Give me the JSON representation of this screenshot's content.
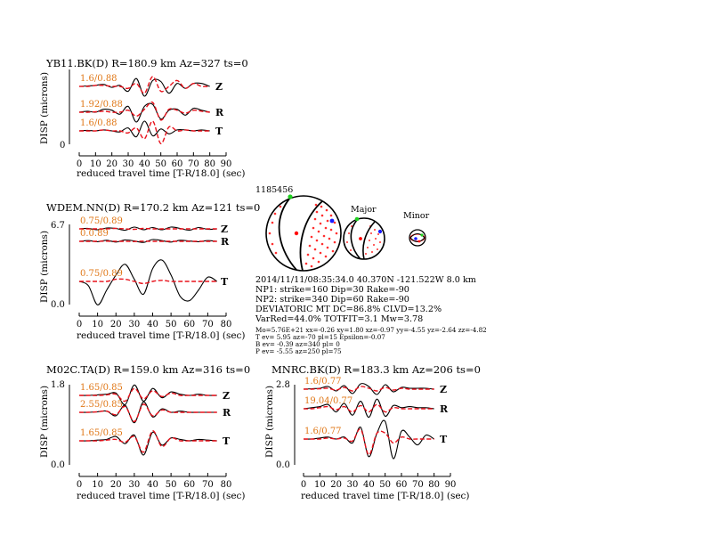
{
  "event": {
    "id": "1185456",
    "origin": "2014/11/11/08:35:34.0 40.370N -121.522W 8.0 km",
    "np1": "NP1: strike=160 Dip=30 Rake=-90",
    "np2": "NP2: strike=340 Dip=60 Rake=-90",
    "deviatoric": "DEVIATORIC MT DC=86.8% CLVD=13.2%",
    "varred": "VarRed=44.0% TOTFIT=3.1 Mw=3.78",
    "mt_line": "Mo=5.76E+21 xx=-0.26 xy=1.80 xz=-0.97 yy=-4.55 yz=-2.64 zz=-4.82",
    "t_line": "T ev=  5.95 az=-70 pl=15 Epsilon=-0.07",
    "b_line": "B ev= -0.39 az=340 pl= 0",
    "p_line": "P ev= -5.55 az=250 pl=75",
    "major_label": "Major",
    "minor_label": "Minor"
  },
  "colors": {
    "data": "#000000",
    "synthetic": "#e8101a",
    "amplitude_text": "#e07818",
    "compression_dot": "#ff3030",
    "t_axis": "#ff0000",
    "p_axis": "#1a1aff",
    "b_axis": "#20d020"
  },
  "chart_data": [
    {
      "type": "line",
      "title": "YB11.BK(D) R=180.9 km Az=327 ts=0",
      "xlabel": "reduced travel time [T-R/18.0] (sec)",
      "ylabel": "DISP (microns)",
      "xlim": [
        0,
        90
      ],
      "xticks": [
        0,
        10,
        20,
        30,
        40,
        50,
        60,
        70,
        80,
        90
      ],
      "yticks": [
        "0"
      ],
      "traces": [
        {
          "component": "Z",
          "amp_label": "1.6/0.88",
          "data": [
            0,
            0.05,
            0.1,
            0.2,
            -0.1,
            0.1,
            -0.5,
            0.8,
            -1.0,
            0.6,
            0.5,
            -0.7,
            0.3,
            -0.2,
            0.3,
            0.3,
            0
          ],
          "synthetic": [
            0,
            0,
            0.1,
            0.1,
            0,
            0,
            -0.2,
            0.3,
            -0.7,
            1.0,
            -0.5,
            0,
            0.6,
            -0.2,
            0.3,
            0,
            0
          ]
        },
        {
          "component": "R",
          "amp_label": "1.92/0.88",
          "data": [
            0,
            0.1,
            0,
            0.3,
            0.2,
            -0.2,
            0.6,
            -1.0,
            0.6,
            0.8,
            -0.7,
            0.2,
            0.3,
            -0.3,
            0.4,
            0.2,
            0
          ],
          "synthetic": [
            0,
            0,
            0.05,
            0.1,
            0,
            0,
            0.2,
            -0.4,
            0.3,
            1.0,
            -0.8,
            0.3,
            0.2,
            -0.1,
            0.2,
            0.1,
            0
          ]
        },
        {
          "component": "T",
          "amp_label": "1.6/0.88",
          "data": [
            0,
            0.05,
            0,
            0.1,
            0,
            -0.1,
            0.3,
            -0.6,
            1.0,
            -0.5,
            0.2,
            -0.3,
            0.1,
            0.1,
            0,
            0.1,
            0
          ],
          "synthetic": [
            0,
            0,
            0,
            0.1,
            0,
            0,
            -0.2,
            0.3,
            -0.8,
            1.0,
            -1.3,
            0.4,
            0,
            0.1,
            0,
            0,
            0
          ]
        }
      ]
    },
    {
      "type": "line",
      "title": "WDEM.NN(D) R=170.2 km Az=121 ts=0",
      "xlabel": "reduced travel time [T-R/18.0] (sec)",
      "ylabel": "DISP (microns)",
      "xlim": [
        0,
        80
      ],
      "xticks": [
        0,
        10,
        20,
        30,
        40,
        50,
        60,
        70,
        80
      ],
      "yticks": [
        "6.7",
        "0.0"
      ],
      "traces": [
        {
          "component": "Z",
          "amp_label": "0.75/0.89",
          "data": [
            0,
            0.1,
            -0.2,
            0.2,
            0.1,
            -0.3,
            0.4,
            -0.2,
            0.3,
            -0.2,
            0.4,
            0.1,
            -0.3,
            0.3,
            -0.1,
            0
          ],
          "synthetic": [
            0,
            0,
            0,
            0,
            0.1,
            0,
            -0.1,
            0.1,
            0,
            0,
            0,
            0,
            0,
            0,
            0,
            0
          ]
        },
        {
          "component": "R",
          "amp_label": "0.0.89",
          "data": [
            0,
            0.2,
            -0.1,
            0.3,
            -0.2,
            0.4,
            0.1,
            -0.3,
            0.5,
            0.2,
            -0.2,
            0.3,
            0.1,
            -0.1,
            0.2,
            0
          ],
          "synthetic": [
            0,
            0,
            0,
            0.05,
            0,
            0,
            -0.05,
            0.05,
            0,
            0,
            0,
            0,
            0,
            0,
            0,
            0
          ]
        },
        {
          "component": "T",
          "amp_label": "0.75/0.89",
          "data": [
            0,
            -0.2,
            -1.1,
            -0.4,
            0.3,
            0.8,
            0.1,
            -0.6,
            0.6,
            1.0,
            0.3,
            -0.7,
            -0.9,
            -0.4,
            0.2,
            0
          ],
          "synthetic": [
            0,
            0,
            0,
            0,
            0.1,
            0.1,
            0,
            -0.1,
            0,
            0.05,
            0,
            0,
            0,
            0,
            0,
            0
          ]
        }
      ]
    },
    {
      "type": "line",
      "title": "M02C.TA(D) R=159.0 km Az=316 ts=0",
      "xlabel": "reduced travel time [T-R/18.0] (sec)",
      "ylabel": "DISP (microns)",
      "xlim": [
        0,
        80
      ],
      "xticks": [
        0,
        10,
        20,
        30,
        40,
        50,
        60,
        70,
        80
      ],
      "yticks": [
        "1.8",
        "0.0"
      ],
      "traces": [
        {
          "component": "Z",
          "amp_label": "1.65/0.85",
          "data": [
            0,
            0,
            0.05,
            0.1,
            0.2,
            -0.8,
            0.9,
            -0.5,
            0.6,
            -0.2,
            0.3,
            0.1,
            0,
            0.1,
            0,
            0
          ],
          "synthetic": [
            0,
            0,
            0,
            0.05,
            0.1,
            -0.5,
            0.6,
            -0.3,
            0.4,
            -0.1,
            0.2,
            0,
            0,
            0,
            0,
            0
          ]
        },
        {
          "component": "R",
          "amp_label": "2.55/0.85",
          "data": [
            0,
            0,
            0.05,
            0.1,
            -0.3,
            0.6,
            -0.9,
            0.9,
            -0.4,
            0.3,
            0,
            0.1,
            0,
            0,
            0,
            0
          ],
          "synthetic": [
            0,
            0,
            0.05,
            0.1,
            -0.2,
            0.5,
            -0.8,
            0.7,
            -0.3,
            0.2,
            0,
            0,
            0,
            0,
            0,
            0
          ]
        },
        {
          "component": "T",
          "amp_label": "1.65/0.85",
          "data": [
            0,
            0,
            0.05,
            0.1,
            0.3,
            -0.2,
            0.4,
            -1.0,
            0.6,
            -0.3,
            0.2,
            0.1,
            0,
            0.1,
            0.05,
            0
          ],
          "synthetic": [
            0,
            0,
            0,
            0.05,
            0.1,
            -0.1,
            0.3,
            -0.8,
            0.7,
            -0.4,
            0.2,
            0,
            0,
            0,
            0,
            0
          ]
        }
      ]
    },
    {
      "type": "line",
      "title": "MNRC.BK(D) R=183.3 km Az=206 ts=0",
      "xlabel": "reduced travel time [T-R/18.0] (sec)",
      "ylabel": "DISP (microns)",
      "xlim": [
        0,
        90
      ],
      "xticks": [
        0,
        10,
        20,
        30,
        40,
        50,
        60,
        70,
        80,
        90
      ],
      "yticks": [
        "2.8",
        "0.0"
      ],
      "traces": [
        {
          "component": "Z",
          "amp_label": "1.6/0.77",
          "data": [
            0,
            0.05,
            0.1,
            0.3,
            -0.2,
            0.4,
            -0.5,
            0.6,
            0.3,
            -0.6,
            0.5,
            -0.3,
            0.2,
            0.1,
            0.1,
            0.1,
            0
          ],
          "synthetic": [
            0,
            0,
            0.05,
            0.1,
            -0.1,
            0.2,
            -0.2,
            0.3,
            0.1,
            -0.2,
            0.2,
            -0.1,
            0.1,
            0,
            0,
            0,
            0
          ]
        },
        {
          "component": "R",
          "amp_label": "19.04/0.77",
          "data": [
            0,
            0.1,
            0.2,
            0.4,
            -0.3,
            0.5,
            -0.6,
            0.7,
            -0.8,
            0.9,
            -0.7,
            0.3,
            0.1,
            0.2,
            0.1,
            0.1,
            0
          ],
          "synthetic": [
            0,
            0,
            0.1,
            0.2,
            -0.1,
            0.2,
            -0.3,
            0.3,
            -0.3,
            0.4,
            -0.3,
            0.1,
            0,
            0,
            0,
            0,
            0
          ]
        },
        {
          "component": "T",
          "amp_label": "1.6/0.77",
          "data": [
            0,
            0,
            0.05,
            0.1,
            0,
            0.1,
            -0.2,
            0.6,
            -0.9,
            0.3,
            0.9,
            -1.0,
            0.4,
            0.1,
            -0.3,
            0.2,
            0
          ],
          "synthetic": [
            0,
            0,
            0,
            0.05,
            0,
            0.05,
            -0.1,
            0.5,
            -0.8,
            0.3,
            0.3,
            -0.2,
            0.1,
            0,
            0,
            0,
            0
          ]
        }
      ]
    }
  ]
}
